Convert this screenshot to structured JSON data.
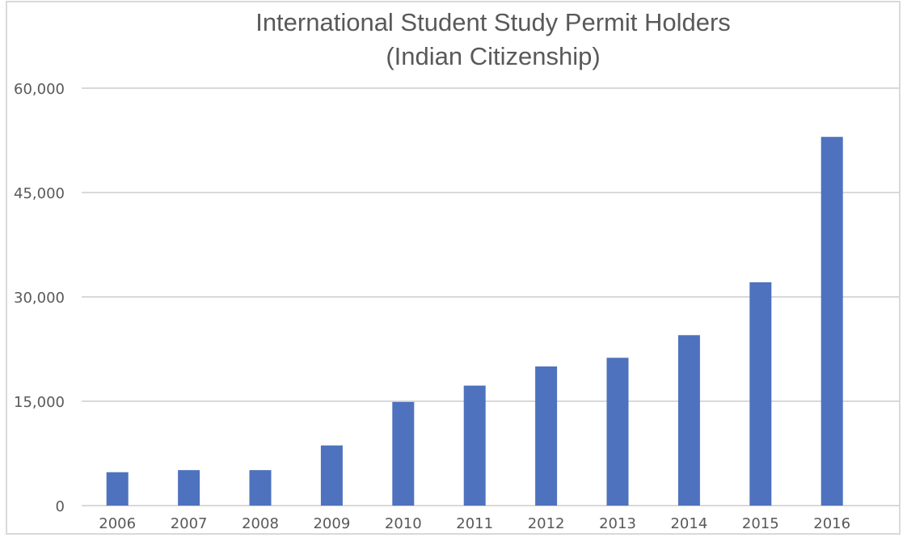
{
  "chart_data": {
    "type": "bar",
    "title": "International Student Study Permit Holders",
    "subtitle": "(Indian Citizenship)",
    "xlabel": "",
    "ylabel": "",
    "categories": [
      "2006",
      "2007",
      "2008",
      "2009",
      "2010",
      "2011",
      "2012",
      "2013",
      "2014",
      "2015",
      "2016"
    ],
    "values": [
      4800,
      5100,
      5100,
      8650,
      14900,
      17250,
      20000,
      21250,
      24500,
      32100,
      53000
    ],
    "ylim": [
      0,
      60000
    ],
    "yticks": [
      0,
      15000,
      30000,
      45000,
      60000
    ],
    "ytick_labels": [
      "0",
      "15,000",
      "30,000",
      "45,000",
      "60,000"
    ],
    "grid": true,
    "legend": "none",
    "colors": {
      "bar": "#4e72be",
      "grid": "#d9d9d9",
      "text": "#595959",
      "border": "#d9d9d9"
    }
  }
}
